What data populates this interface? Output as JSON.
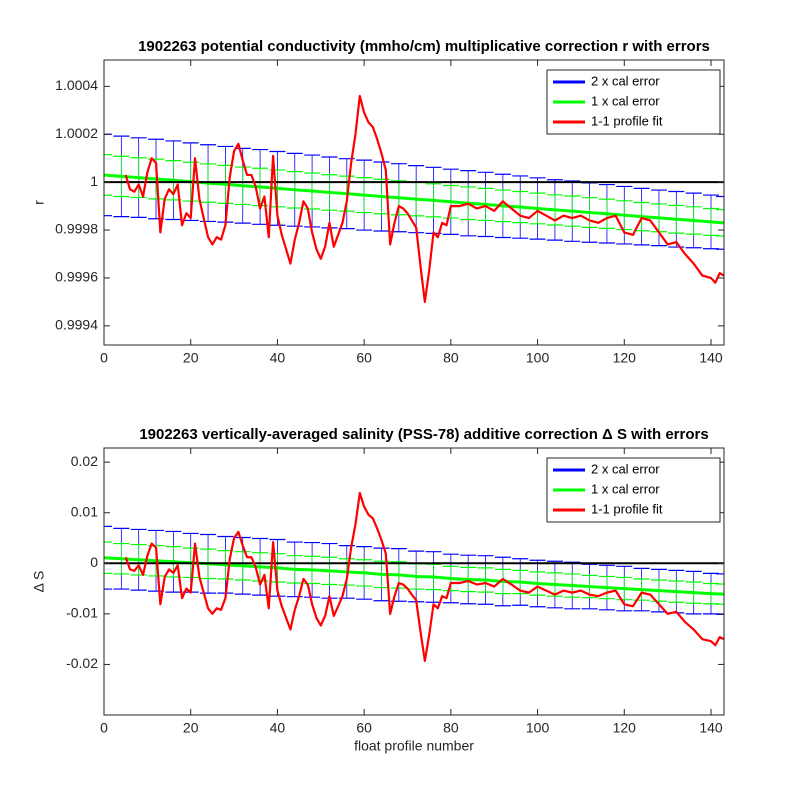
{
  "chart_data": [
    {
      "type": "errorbar_line",
      "title": "1902263 potential conductivity (mmho/cm) multiplicative correction r with errors",
      "y_label": "r",
      "xlim": [
        0,
        143
      ],
      "xticks": [
        0,
        20,
        40,
        60,
        80,
        100,
        120,
        140
      ],
      "ylim": [
        0.99932,
        1.00051
      ],
      "yticks": [
        0.9994,
        0.9996,
        0.9998,
        1,
        1.0002,
        1.0004
      ],
      "hline": 1,
      "legend": "northeast",
      "series": [
        {
          "name": "2 x cal error",
          "color": "#0000ff",
          "x": [
            0,
            4,
            8,
            12,
            16,
            20,
            24,
            28,
            32,
            36,
            40,
            44,
            48,
            52,
            56,
            60,
            64,
            68,
            72,
            76,
            80,
            84,
            88,
            92,
            96,
            100,
            104,
            108,
            112,
            116,
            120,
            124,
            128,
            132,
            136,
            140,
            143
          ],
          "values": [
            1.00003,
            1.000024,
            1.000019,
            1.000013,
            1.000008,
            1.000002,
            0.999996,
            0.999991,
            0.999985,
            0.99998,
            0.999974,
            0.999968,
            0.999963,
            0.999957,
            0.999952,
            0.999946,
            0.99994,
            0.999935,
            0.999929,
            0.999924,
            0.999918,
            0.999912,
            0.999907,
            0.999901,
            0.999896,
            0.99989,
            0.999884,
            0.999879,
            0.999873,
            0.999868,
            0.999862,
            0.999856,
            0.999851,
            0.999845,
            0.99984,
            0.999834,
            0.99983
          ],
          "errors": [
            0.00017,
            0.000168,
            0.000166,
            0.000166,
            0.000164,
            0.000162,
            0.00016,
            0.000158,
            0.000156,
            0.000156,
            0.000154,
            0.000152,
            0.00015,
            0.000148,
            0.000146,
            0.000146,
            0.000144,
            0.000142,
            0.00014,
            0.000138,
            0.000136,
            0.000136,
            0.000134,
            0.000132,
            0.00013,
            0.000128,
            0.000126,
            0.000126,
            0.000124,
            0.000122,
            0.00012,
            0.000118,
            0.000116,
            0.000116,
            0.000114,
            0.000112,
            0.00011
          ]
        },
        {
          "name": "1 x cal error",
          "color": "#00ff00",
          "x": [
            0,
            4,
            8,
            12,
            16,
            20,
            24,
            28,
            32,
            36,
            40,
            44,
            48,
            52,
            56,
            60,
            64,
            68,
            72,
            76,
            80,
            84,
            88,
            92,
            96,
            100,
            104,
            108,
            112,
            116,
            120,
            124,
            128,
            132,
            136,
            140,
            143
          ],
          "values": [
            1.00003,
            1.000024,
            1.000019,
            1.000013,
            1.000008,
            1.000002,
            0.999996,
            0.999991,
            0.999985,
            0.99998,
            0.999974,
            0.999968,
            0.999963,
            0.999957,
            0.999952,
            0.999946,
            0.99994,
            0.999935,
            0.999929,
            0.999924,
            0.999918,
            0.999912,
            0.999907,
            0.999901,
            0.999896,
            0.99989,
            0.999884,
            0.999879,
            0.999873,
            0.999868,
            0.999862,
            0.999856,
            0.999851,
            0.999845,
            0.99984,
            0.999834,
            0.99983
          ],
          "errors": [
            8.5e-05,
            8.4e-05,
            8.3e-05,
            8.3e-05,
            8.2e-05,
            8.1e-05,
            8e-05,
            7.9e-05,
            7.8e-05,
            7.8e-05,
            7.7e-05,
            7.6e-05,
            7.5e-05,
            7.4e-05,
            7.3e-05,
            7.3e-05,
            7.2e-05,
            7.1e-05,
            7e-05,
            6.9e-05,
            6.8e-05,
            6.8e-05,
            6.7e-05,
            6.6e-05,
            6.5e-05,
            6.4e-05,
            6.3e-05,
            6.3e-05,
            6.2e-05,
            6.1e-05,
            6e-05,
            5.9e-05,
            5.8e-05,
            5.8e-05,
            5.7e-05,
            5.6e-05,
            5.5e-05
          ]
        },
        {
          "name": "1-1 profile fit",
          "color": "#ff0000",
          "x": [
            5,
            6,
            7,
            8,
            9,
            10,
            11,
            12,
            13,
            14,
            15,
            16,
            17,
            18,
            19,
            20,
            21,
            22,
            23,
            24,
            25,
            26,
            27,
            28,
            29,
            30,
            31,
            32,
            33,
            34,
            35,
            36,
            37,
            38,
            39,
            40,
            41,
            42,
            43,
            44,
            45,
            46,
            47,
            48,
            49,
            50,
            51,
            52,
            53,
            54,
            55,
            56,
            57,
            58,
            59,
            60,
            61,
            62,
            63,
            64,
            65,
            66,
            67,
            68,
            69,
            70,
            71,
            72,
            73,
            74,
            75,
            76,
            77,
            78,
            79,
            80,
            82,
            84,
            86,
            88,
            90,
            92,
            94,
            96,
            98,
            100,
            102,
            104,
            106,
            108,
            110,
            112,
            114,
            116,
            118,
            120,
            122,
            124,
            126,
            128,
            130,
            132,
            134,
            136,
            138,
            140,
            141,
            142,
            143
          ],
          "values": [
            1.00003,
            0.99997,
            0.99996,
            0.99999,
            0.99994,
            1.00004,
            1.0001,
            1.00008,
            0.99979,
            0.99993,
            0.99997,
            0.99995,
            0.99999,
            0.99982,
            0.99987,
            0.99985,
            1.0001,
            0.99993,
            0.99985,
            0.99977,
            0.99974,
            0.99977,
            0.99976,
            0.99982,
            1.00002,
            1.00013,
            1.00016,
            1.00009,
            1.00003,
            1.00003,
            0.99998,
            0.99989,
            0.99994,
            0.99977,
            1.00011,
            0.99986,
            0.99978,
            0.99972,
            0.99966,
            0.99976,
            0.99983,
            0.99992,
            0.99989,
            0.99979,
            0.99972,
            0.99968,
            0.99973,
            0.99983,
            0.99973,
            0.99978,
            0.99983,
            0.99992,
            1.00008,
            1.0002,
            1.00036,
            1.00029,
            1.00025,
            1.00023,
            1.00018,
            1.00012,
            1.00005,
            0.99974,
            0.99983,
            0.9999,
            0.99989,
            0.99987,
            0.99984,
            0.99981,
            0.99965,
            0.9995,
            0.99963,
            0.99979,
            0.99977,
            0.99983,
            0.99982,
            0.9999,
            0.9999,
            0.99991,
            0.99989,
            0.9999,
            0.99988,
            0.99992,
            0.99989,
            0.99986,
            0.99985,
            0.99988,
            0.99986,
            0.99984,
            0.99986,
            0.99985,
            0.99986,
            0.99984,
            0.99983,
            0.99985,
            0.99986,
            0.99979,
            0.99978,
            0.99985,
            0.99984,
            0.99979,
            0.99974,
            0.99975,
            0.9997,
            0.99966,
            0.99961,
            0.9996,
            0.99958,
            0.99962,
            0.99961
          ]
        }
      ]
    },
    {
      "type": "errorbar_line",
      "title": "1902263 vertically-averaged salinity (PSS-78) additive correction Δ S with errors",
      "y_label": "Δ S",
      "x_label": "float profile number",
      "xlim": [
        0,
        143
      ],
      "xticks": [
        0,
        20,
        40,
        60,
        80,
        100,
        120,
        140
      ],
      "ylim": [
        -0.03,
        0.0228
      ],
      "yticks": [
        -0.02,
        -0.01,
        0,
        0.01,
        0.02
      ],
      "hline": 0,
      "legend": "northeast",
      "series": [
        {
          "name": "2 x cal error",
          "color": "#0000ff",
          "x": [
            0,
            4,
            8,
            12,
            16,
            20,
            24,
            28,
            32,
            36,
            40,
            44,
            48,
            52,
            56,
            60,
            64,
            68,
            72,
            76,
            80,
            84,
            88,
            92,
            96,
            100,
            104,
            108,
            112,
            116,
            120,
            124,
            128,
            132,
            136,
            140,
            143
          ],
          "values": [
            0.0011,
            0.0009,
            0.0007,
            0.0005,
            0.0003,
            0.0001,
            -0.0001,
            -0.0003,
            -0.0005,
            -0.0007,
            -0.0009,
            -0.0012,
            -0.0013,
            -0.0015,
            -0.0017,
            -0.0019,
            -0.0022,
            -0.0023,
            -0.0026,
            -0.0027,
            -0.003,
            -0.0032,
            -0.0033,
            -0.0036,
            -0.0037,
            -0.004,
            -0.0042,
            -0.0044,
            -0.0046,
            -0.0048,
            -0.005,
            -0.0052,
            -0.0054,
            -0.0056,
            -0.0058,
            -0.006,
            -0.0061
          ],
          "errors": [
            0.0062,
            0.006,
            0.006,
            0.006,
            0.006,
            0.0058,
            0.0058,
            0.0056,
            0.0056,
            0.0056,
            0.0056,
            0.0054,
            0.0054,
            0.0054,
            0.0052,
            0.0052,
            0.0052,
            0.0052,
            0.005,
            0.005,
            0.0048,
            0.0048,
            0.0048,
            0.0048,
            0.0046,
            0.0046,
            0.0046,
            0.0046,
            0.0044,
            0.0044,
            0.0044,
            0.0042,
            0.0042,
            0.0042,
            0.0042,
            0.004,
            0.004
          ]
        },
        {
          "name": "1 x cal error",
          "color": "#00ff00",
          "x": [
            0,
            4,
            8,
            12,
            16,
            20,
            24,
            28,
            32,
            36,
            40,
            44,
            48,
            52,
            56,
            60,
            64,
            68,
            72,
            76,
            80,
            84,
            88,
            92,
            96,
            100,
            104,
            108,
            112,
            116,
            120,
            124,
            128,
            132,
            136,
            140,
            143
          ],
          "values": [
            0.0011,
            0.0009,
            0.0007,
            0.0005,
            0.0003,
            0.0001,
            -0.0001,
            -0.0003,
            -0.0005,
            -0.0007,
            -0.0009,
            -0.0012,
            -0.0013,
            -0.0015,
            -0.0017,
            -0.0019,
            -0.0022,
            -0.0023,
            -0.0026,
            -0.0027,
            -0.003,
            -0.0032,
            -0.0033,
            -0.0036,
            -0.0037,
            -0.004,
            -0.0042,
            -0.0044,
            -0.0046,
            -0.0048,
            -0.005,
            -0.0052,
            -0.0054,
            -0.0056,
            -0.0058,
            -0.006,
            -0.0061
          ],
          "errors": [
            0.0031,
            0.003,
            0.003,
            0.003,
            0.003,
            0.0029,
            0.0029,
            0.0028,
            0.0028,
            0.0028,
            0.0028,
            0.0027,
            0.0027,
            0.0027,
            0.0026,
            0.0026,
            0.0026,
            0.0026,
            0.0025,
            0.0025,
            0.0024,
            0.0024,
            0.0024,
            0.0024,
            0.0023,
            0.0023,
            0.0023,
            0.0023,
            0.0022,
            0.0022,
            0.0022,
            0.0021,
            0.0021,
            0.0021,
            0.0021,
            0.002,
            0.002
          ]
        },
        {
          "name": "1-1 profile fit",
          "color": "#ff0000",
          "x": [
            5,
            6,
            7,
            8,
            9,
            10,
            11,
            12,
            13,
            14,
            15,
            16,
            17,
            18,
            19,
            20,
            21,
            22,
            23,
            24,
            25,
            26,
            27,
            28,
            29,
            30,
            31,
            32,
            33,
            34,
            35,
            36,
            37,
            38,
            39,
            40,
            41,
            42,
            43,
            44,
            45,
            46,
            47,
            48,
            49,
            50,
            51,
            52,
            53,
            54,
            55,
            56,
            57,
            58,
            59,
            60,
            61,
            62,
            63,
            64,
            65,
            66,
            67,
            68,
            69,
            70,
            71,
            72,
            73,
            74,
            75,
            76,
            77,
            78,
            79,
            80,
            82,
            84,
            86,
            88,
            90,
            92,
            94,
            96,
            98,
            100,
            102,
            104,
            106,
            108,
            110,
            112,
            114,
            116,
            118,
            120,
            122,
            124,
            126,
            128,
            130,
            132,
            134,
            136,
            138,
            140,
            141,
            142,
            143
          ],
          "values": [
            0.0012,
            -0.0012,
            -0.0015,
            -0.0004,
            -0.0023,
            0.0015,
            0.0039,
            0.0031,
            -0.0081,
            -0.0027,
            -0.0012,
            -0.0019,
            -0.0004,
            -0.0069,
            -0.005,
            -0.0058,
            0.0039,
            -0.0027,
            -0.0058,
            -0.0089,
            -0.01,
            -0.0089,
            -0.0092,
            -0.0069,
            0.0008,
            0.005,
            0.0062,
            0.0035,
            0.0012,
            0.0012,
            -0.0008,
            -0.0042,
            -0.0023,
            -0.0089,
            0.0042,
            -0.0054,
            -0.0085,
            -0.0108,
            -0.0131,
            -0.0092,
            -0.0065,
            -0.0031,
            -0.0042,
            -0.0081,
            -0.0108,
            -0.0123,
            -0.0104,
            -0.0065,
            -0.0104,
            -0.0085,
            -0.0065,
            -0.0031,
            0.0031,
            0.0077,
            0.0139,
            0.0112,
            0.0096,
            0.0089,
            0.0069,
            0.0046,
            0.0019,
            -0.01,
            -0.0065,
            -0.0039,
            -0.0042,
            -0.005,
            -0.0062,
            -0.0073,
            -0.0135,
            -0.0193,
            -0.0142,
            -0.0081,
            -0.0089,
            -0.0065,
            -0.0069,
            -0.0039,
            -0.0039,
            -0.0035,
            -0.0042,
            -0.0039,
            -0.0046,
            -0.0031,
            -0.0042,
            -0.0054,
            -0.0058,
            -0.0046,
            -0.0054,
            -0.0062,
            -0.0054,
            -0.0058,
            -0.0054,
            -0.0062,
            -0.0065,
            -0.0058,
            -0.0054,
            -0.0081,
            -0.0085,
            -0.0058,
            -0.0062,
            -0.0081,
            -0.01,
            -0.0096,
            -0.0116,
            -0.0131,
            -0.015,
            -0.0154,
            -0.0162,
            -0.0146,
            -0.015
          ]
        }
      ]
    }
  ]
}
